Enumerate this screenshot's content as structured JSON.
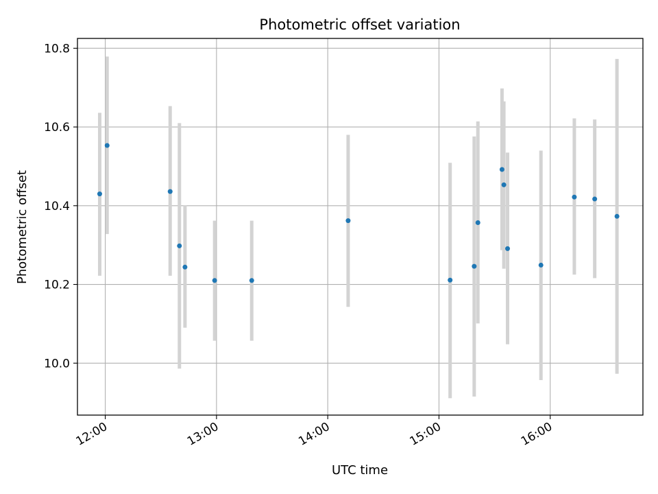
{
  "chart_data": {
    "type": "scatter",
    "title": "Photometric offset variation",
    "xlabel": "UTC time",
    "ylabel": "Photometric offset",
    "x_axis_type": "time",
    "xlim": [
      "11:45",
      "16:50"
    ],
    "ylim": [
      9.868,
      10.825
    ],
    "x_ticks": [
      "12:00",
      "13:00",
      "14:00",
      "15:00",
      "16:00"
    ],
    "y_ticks": [
      "10.0",
      "10.2",
      "10.4",
      "10.6",
      "10.8"
    ],
    "grid": true,
    "legend": "none",
    "point_color": "#1f77b4",
    "errorbar_color": "#d3d3d3",
    "series": [
      {
        "points": [
          {
            "t": "11:57",
            "y": 10.43,
            "low": 10.222,
            "high": 10.636
          },
          {
            "t": "12:01",
            "y": 10.553,
            "low": 10.328,
            "high": 10.779
          },
          {
            "t": "12:35",
            "y": 10.436,
            "low": 10.222,
            "high": 10.653
          },
          {
            "t": "12:40",
            "y": 10.298,
            "low": 9.986,
            "high": 10.61
          },
          {
            "t": "12:43",
            "y": 10.244,
            "low": 10.09,
            "high": 10.401
          },
          {
            "t": "12:59",
            "y": 10.21,
            "low": 10.057,
            "high": 10.362
          },
          {
            "t": "13:19",
            "y": 10.21,
            "low": 10.057,
            "high": 10.362
          },
          {
            "t": "14:11",
            "y": 10.362,
            "low": 10.143,
            "high": 10.58
          },
          {
            "t": "15:06",
            "y": 10.211,
            "low": 9.911,
            "high": 10.509
          },
          {
            "t": "15:19",
            "y": 10.246,
            "low": 9.915,
            "high": 10.576
          },
          {
            "t": "15:21",
            "y": 10.357,
            "low": 10.101,
            "high": 10.614
          },
          {
            "t": "15:34",
            "y": 10.492,
            "low": 10.287,
            "high": 10.698
          },
          {
            "t": "15:35",
            "y": 10.453,
            "low": 10.24,
            "high": 10.665
          },
          {
            "t": "15:37",
            "y": 10.291,
            "low": 10.048,
            "high": 10.535
          },
          {
            "t": "15:55",
            "y": 10.249,
            "low": 9.957,
            "high": 10.54
          },
          {
            "t": "16:13",
            "y": 10.422,
            "low": 10.225,
            "high": 10.622
          },
          {
            "t": "16:24",
            "y": 10.417,
            "low": 10.216,
            "high": 10.619
          },
          {
            "t": "16:36",
            "y": 10.373,
            "low": 9.973,
            "high": 10.773
          }
        ]
      }
    ]
  }
}
